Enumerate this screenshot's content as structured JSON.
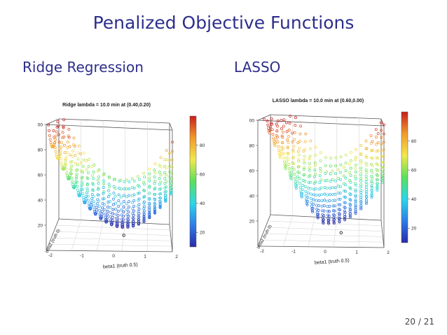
{
  "slide": {
    "title": "Penalized Objective Functions",
    "page_number": "20 / 21"
  },
  "colors": {
    "heading": "#2e2e8c",
    "colorbar_stops": [
      "#2a2aa8",
      "#2f7ce8",
      "#2ad6e8",
      "#5be05b",
      "#f2e84a",
      "#f29a2a",
      "#c81e1e"
    ]
  },
  "panels": [
    {
      "heading": "Ridge Regression",
      "chart_data": {
        "type": "scatter",
        "title": "Ridge lambda = 10.0  min at (0.40,0.20)",
        "xlabel": "beta1 (truth 0.5)",
        "ylabel": "beta2 (truth 0)",
        "x_ticks": [
          "-2",
          "-1",
          "0",
          "1",
          "2"
        ],
        "z_ticks": [
          "20",
          "40",
          "60",
          "80",
          "100"
        ],
        "colorbar_ticks": [
          "20",
          "40",
          "60",
          "80"
        ],
        "minimum": [
          0.4,
          0.2
        ],
        "surface": "quadratic bowl",
        "zlim": [
          0,
          100
        ]
      }
    },
    {
      "heading": "LASSO",
      "chart_data": {
        "type": "scatter",
        "title": "LASSO lambda = 10.0  min at (0.60,0.00)",
        "xlabel": "beta1 (truth 0.5)",
        "ylabel": "beta2 (truth 0)",
        "x_ticks": [
          "-2",
          "-1",
          "0",
          "1",
          "2"
        ],
        "z_ticks": [
          "20",
          "40",
          "60",
          "80",
          "100"
        ],
        "colorbar_ticks": [
          "20",
          "40",
          "60",
          "80"
        ],
        "minimum": [
          0.6,
          0.0
        ],
        "surface": "bowl with l1 ridge",
        "zlim": [
          0,
          100
        ]
      }
    }
  ]
}
